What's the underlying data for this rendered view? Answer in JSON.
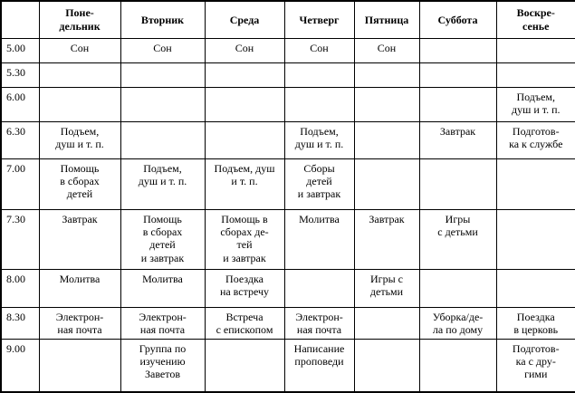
{
  "table": {
    "corner": "",
    "days": [
      "Поне-\nдельник",
      "Вторник",
      "Среда",
      "Четверг",
      "Пятница",
      "Суббота",
      "Воскре-\nсенье"
    ],
    "rows": [
      {
        "time": "5.00",
        "cells": [
          "Сон",
          "Сон",
          "Сон",
          "Сон",
          "Сон",
          "",
          ""
        ]
      },
      {
        "time": "5.30",
        "cells": [
          "",
          "",
          "",
          "",
          "",
          "",
          ""
        ]
      },
      {
        "time": "6.00",
        "cells": [
          "",
          "",
          "",
          "",
          "",
          "",
          "Подъем,\nдуш и т. п."
        ]
      },
      {
        "time": "6.30",
        "cells": [
          "Подъем,\nдуш и т. п.",
          "",
          "",
          "Подъем,\nдуш и т. п.",
          "",
          "Завтрак",
          "Подготов-\nка к службе"
        ]
      },
      {
        "time": "7.00",
        "cells": [
          "Помощь\nв сборах\nдетей",
          "Подъем,\nдуш и т. п.",
          "Подъем, душ\nи т. п.",
          "Сборы\nдетей\nи завтрак",
          "",
          "",
          ""
        ]
      },
      {
        "time": "7.30",
        "cells": [
          "Завтрак",
          "Помощь\nв сборах\nдетей\nи завтрак",
          "Помощь в\nсборах де-\nтей\nи завтрак",
          "Молитва",
          "Завтрак",
          "Игры\nс детьми",
          ""
        ]
      },
      {
        "time": "8.00",
        "cells": [
          "Молитва",
          "Молитва",
          "Поездка\nна встречу",
          "",
          "Игры с\nдетьми",
          "",
          ""
        ]
      },
      {
        "time": "8.30",
        "cells": [
          "Электрон-\nная почта",
          "Электрон-\nная почта",
          "Встреча\nс епископом",
          "Электрон-\nная почта",
          "",
          "Уборка/де-\nла по дому",
          "Поездка\nв церковь"
        ]
      },
      {
        "time": "9.00",
        "cells": [
          "",
          "Группа по\nизучению\nЗаветов",
          "",
          "Написание\nпроповеди",
          "",
          "",
          "Подготов-\nка с дру-\nгими"
        ]
      }
    ],
    "colors": {
      "border": "#000000",
      "background": "#ffffff",
      "text": "#000000"
    }
  }
}
